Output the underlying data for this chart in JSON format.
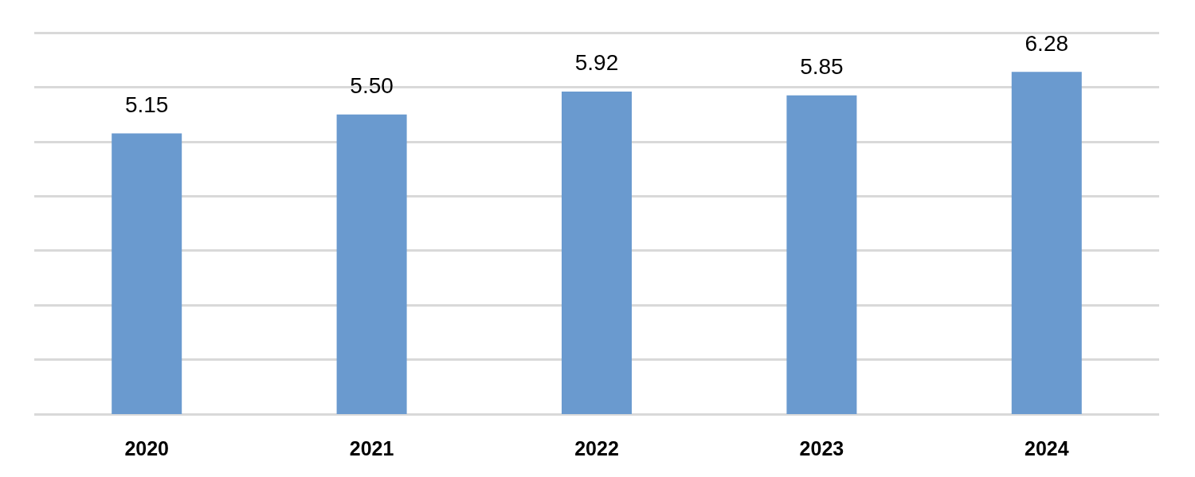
{
  "chart_data": {
    "type": "bar",
    "categories": [
      "2020",
      "2021",
      "2022",
      "2023",
      "2024"
    ],
    "values": [
      5.15,
      5.5,
      5.92,
      5.85,
      6.28
    ],
    "value_labels": [
      "5.15",
      "5.50",
      "5.92",
      "5.85",
      "6.28"
    ],
    "color": "#6a9acf",
    "ylim": [
      0,
      7
    ],
    "yticks": [
      {
        "value": 0,
        "label": null
      },
      {
        "value": 1,
        "label": null
      },
      {
        "value": 2,
        "label": null
      },
      {
        "value": 3,
        "label": null
      },
      {
        "value": 4,
        "label": null
      },
      {
        "value": 5,
        "label": null
      },
      {
        "value": 6,
        "label": null
      },
      {
        "value": 7,
        "label": null
      }
    ],
    "grid": "y",
    "tick_labels": "x"
  }
}
